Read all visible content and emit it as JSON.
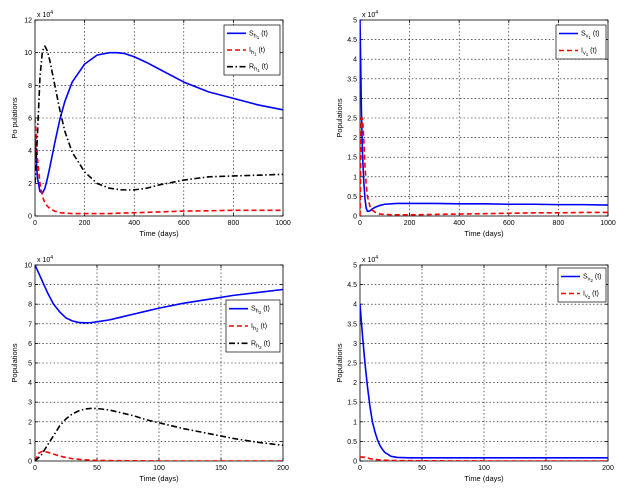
{
  "chart_data": [
    {
      "type": "line",
      "xlabel": "Time (days)",
      "ylabel": "Po pulations",
      "yscale_label": "x 10",
      "yscale_exp": "4",
      "xlim": [
        0,
        1000
      ],
      "ylim": [
        0,
        12
      ],
      "xticks": [
        "0",
        "200",
        "400",
        "600",
        "800",
        "1000"
      ],
      "yticks": [
        "0",
        "2",
        "4",
        "6",
        "8",
        "10",
        "12"
      ],
      "grid": true,
      "legend_position": "top-right",
      "series": [
        {
          "name": "S_h1 (t)",
          "color": "#0000ff",
          "style": "solid",
          "x": [
            0,
            5,
            10,
            20,
            30,
            40,
            50,
            60,
            80,
            100,
            120,
            150,
            200,
            250,
            300,
            330,
            360,
            400,
            450,
            500,
            600,
            700,
            800,
            900,
            1000
          ],
          "y": [
            5.0,
            3.5,
            2.3,
            1.5,
            1.4,
            1.7,
            2.3,
            3.0,
            4.5,
            5.9,
            7.0,
            8.2,
            9.3,
            9.85,
            10.0,
            10.0,
            9.95,
            9.75,
            9.4,
            9.0,
            8.2,
            7.6,
            7.2,
            6.8,
            6.5
          ]
        },
        {
          "name": "I_h1 (t)",
          "color": "#ff0000",
          "style": "dashed",
          "x": [
            0,
            5,
            10,
            20,
            30,
            40,
            50,
            60,
            80,
            100,
            150,
            200,
            300,
            400,
            500,
            600,
            700,
            800,
            900,
            1000
          ],
          "y": [
            6.0,
            5.0,
            3.5,
            2.0,
            1.2,
            0.8,
            0.6,
            0.45,
            0.3,
            0.2,
            0.15,
            0.15,
            0.15,
            0.2,
            0.25,
            0.3,
            0.32,
            0.35,
            0.35,
            0.35
          ]
        },
        {
          "name": "R_h1 (t)",
          "color": "#000000",
          "style": "dashdot",
          "x": [
            0,
            10,
            20,
            30,
            40,
            50,
            60,
            80,
            100,
            120,
            150,
            200,
            250,
            300,
            350,
            400,
            450,
            500,
            600,
            700,
            800,
            900,
            1000
          ],
          "y": [
            2.0,
            5.0,
            8.5,
            10.1,
            10.4,
            10.1,
            9.5,
            8.0,
            6.5,
            5.2,
            3.9,
            2.7,
            2.0,
            1.7,
            1.6,
            1.6,
            1.7,
            1.9,
            2.2,
            2.4,
            2.45,
            2.5,
            2.55
          ]
        }
      ]
    },
    {
      "type": "line",
      "xlabel": "Time (days)",
      "ylabel": "Populations",
      "yscale_label": "x 10",
      "yscale_exp": "4",
      "xlim": [
        0,
        1000
      ],
      "ylim": [
        0,
        5
      ],
      "xticks": [
        "0",
        "200",
        "400",
        "600",
        "800",
        "1000"
      ],
      "yticks": [
        "0",
        "0.5",
        "1",
        "1.5",
        "2",
        "2.5",
        "3",
        "3.5",
        "4",
        "4.5",
        "5"
      ],
      "grid": true,
      "legend_position": "top-right",
      "series": [
        {
          "name": "S_v1 (t)",
          "color": "#0000ff",
          "style": "solid",
          "x": [
            0,
            3,
            6,
            10,
            15,
            20,
            25,
            30,
            40,
            50,
            60,
            80,
            100,
            150,
            200,
            300,
            400,
            500,
            600,
            700,
            800,
            900,
            1000
          ],
          "y": [
            5.0,
            3.8,
            2.6,
            1.6,
            0.9,
            0.45,
            0.2,
            0.12,
            0.13,
            0.18,
            0.22,
            0.27,
            0.3,
            0.32,
            0.32,
            0.32,
            0.31,
            0.31,
            0.3,
            0.3,
            0.29,
            0.29,
            0.28
          ]
        },
        {
          "name": "I_v1 (t)",
          "color": "#ff0000",
          "style": "dashed",
          "x": [
            0,
            5,
            10,
            15,
            20,
            25,
            30,
            40,
            50,
            60,
            80,
            100,
            150,
            200,
            300,
            400,
            500,
            600,
            700,
            800,
            900,
            1000
          ],
          "y": [
            0.0,
            2.5,
            2.5,
            2.0,
            1.3,
            0.8,
            0.5,
            0.25,
            0.15,
            0.1,
            0.05,
            0.04,
            0.03,
            0.03,
            0.04,
            0.05,
            0.06,
            0.07,
            0.08,
            0.08,
            0.09,
            0.09
          ]
        }
      ]
    },
    {
      "type": "line",
      "xlabel": "Time (days)",
      "ylabel": "Populations",
      "yscale_label": "x 10",
      "yscale_exp": "4",
      "xlim": [
        0,
        200
      ],
      "ylim": [
        0,
        10
      ],
      "xticks": [
        "0",
        "50",
        "100",
        "150",
        "200"
      ],
      "yticks": [
        "0",
        "1",
        "2",
        "3",
        "4",
        "5",
        "6",
        "7",
        "8",
        "9",
        "10"
      ],
      "grid": true,
      "legend_position": "right",
      "series": [
        {
          "name": "S_h2 (t)",
          "color": "#0000ff",
          "style": "solid",
          "x": [
            0,
            5,
            10,
            15,
            20,
            25,
            30,
            35,
            40,
            45,
            50,
            60,
            70,
            80,
            90,
            100,
            120,
            140,
            160,
            180,
            200
          ],
          "y": [
            10.0,
            9.3,
            8.6,
            8.0,
            7.6,
            7.3,
            7.15,
            7.07,
            7.05,
            7.06,
            7.1,
            7.2,
            7.35,
            7.5,
            7.65,
            7.8,
            8.05,
            8.25,
            8.45,
            8.6,
            8.75
          ]
        },
        {
          "name": "I_h2 (t)",
          "color": "#ff0000",
          "style": "dashed",
          "x": [
            0,
            3,
            6,
            10,
            15,
            20,
            25,
            30,
            40,
            50,
            60,
            80,
            100,
            150,
            200
          ],
          "y": [
            0.0,
            0.4,
            0.5,
            0.45,
            0.35,
            0.25,
            0.18,
            0.12,
            0.06,
            0.03,
            0.02,
            0.01,
            0.0,
            0.0,
            0.0
          ]
        },
        {
          "name": "R_h2 (t)",
          "color": "#000000",
          "style": "dashdot",
          "x": [
            0,
            5,
            10,
            15,
            20,
            25,
            30,
            35,
            40,
            45,
            50,
            60,
            70,
            80,
            90,
            100,
            120,
            140,
            160,
            180,
            200
          ],
          "y": [
            0.0,
            0.3,
            0.8,
            1.3,
            1.8,
            2.15,
            2.4,
            2.55,
            2.65,
            2.68,
            2.68,
            2.6,
            2.45,
            2.3,
            2.1,
            1.95,
            1.65,
            1.4,
            1.15,
            0.95,
            0.8
          ]
        }
      ]
    },
    {
      "type": "line",
      "xlabel": "Time (days)",
      "ylabel": "Populations",
      "yscale_label": "x 10",
      "yscale_exp": "4",
      "xlim": [
        0,
        200
      ],
      "ylim": [
        0,
        5
      ],
      "xticks": [
        "0",
        "50",
        "100",
        "150",
        "200"
      ],
      "yticks": [
        "0",
        "0.5",
        "1",
        "1.5",
        "2",
        "2.5",
        "3",
        "3.5",
        "4",
        "4.5",
        "5"
      ],
      "grid": true,
      "legend_position": "top-right",
      "series": [
        {
          "name": "S_v2 (t)",
          "color": "#0000ff",
          "style": "solid",
          "x": [
            0,
            2,
            4,
            6,
            8,
            10,
            12,
            14,
            16,
            18,
            20,
            25,
            30,
            40,
            50,
            100,
            150,
            200
          ],
          "y": [
            4.0,
            3.2,
            2.5,
            1.9,
            1.4,
            1.0,
            0.75,
            0.55,
            0.4,
            0.3,
            0.22,
            0.12,
            0.09,
            0.08,
            0.08,
            0.08,
            0.08,
            0.08
          ]
        },
        {
          "name": "I_v2 (t)",
          "color": "#ff0000",
          "style": "dashed",
          "x": [
            0,
            2,
            4,
            6,
            8,
            10,
            15,
            20,
            30,
            50,
            100,
            150,
            200
          ],
          "y": [
            0.1,
            0.1,
            0.09,
            0.08,
            0.06,
            0.05,
            0.03,
            0.02,
            0.01,
            0.005,
            0.0,
            0.0,
            0.0
          ]
        }
      ]
    }
  ]
}
